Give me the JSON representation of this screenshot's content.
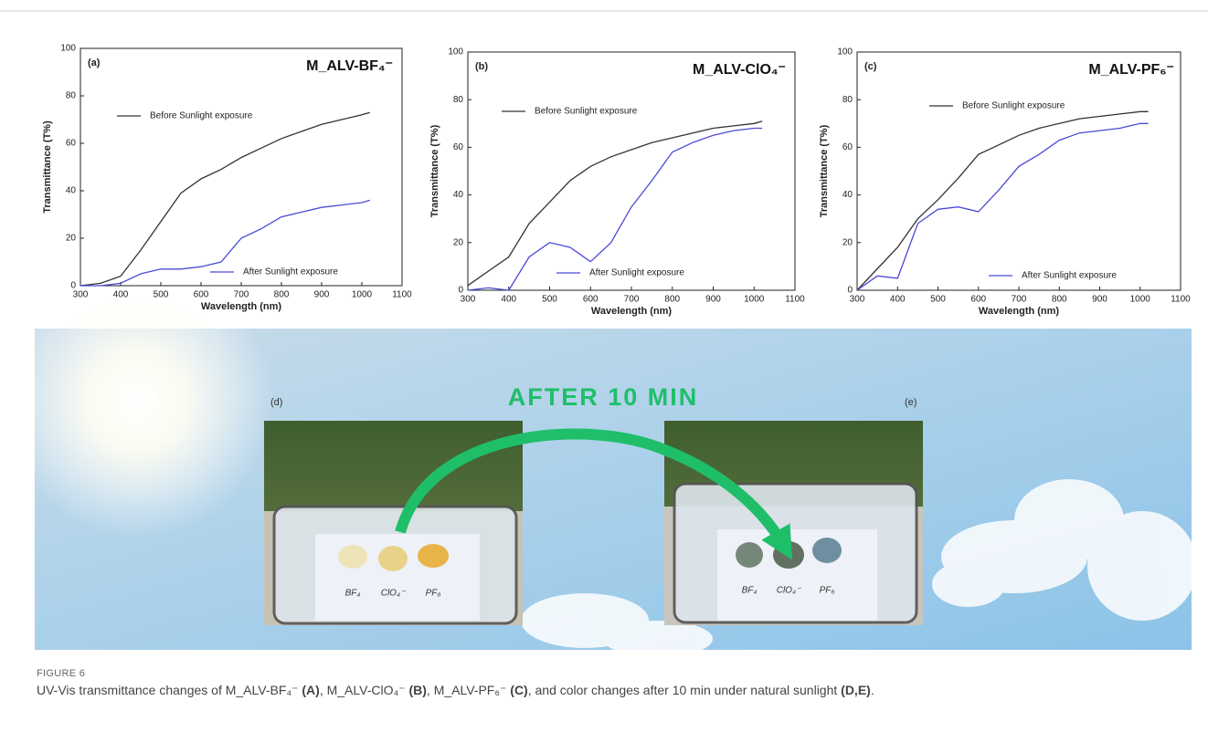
{
  "chart_data": [
    {
      "type": "line",
      "panel": "(a)",
      "title": "M_ALV-BF₄⁻",
      "x_label": "Wavelength (nm)",
      "y_label": "Transmittance (T%)",
      "x": [
        300,
        350,
        400,
        450,
        500,
        550,
        600,
        650,
        700,
        750,
        800,
        850,
        900,
        950,
        1000,
        1020
      ],
      "series": [
        {
          "name": "Before Sunlight exposure",
          "color": "#333333",
          "values": [
            0,
            1,
            4,
            15,
            27,
            39,
            45,
            49,
            54,
            58,
            62,
            65,
            68,
            70,
            72,
            73
          ]
        },
        {
          "name": "After Sunlight exposure",
          "color": "#4a4ad8",
          "values": [
            0,
            0,
            1,
            5,
            7,
            7,
            8,
            10,
            20,
            24,
            29,
            31,
            33,
            34,
            35,
            36
          ]
        }
      ],
      "xlim": [
        300,
        1100
      ],
      "xticks": [
        300,
        400,
        500,
        600,
        700,
        800,
        900,
        1000,
        1100
      ],
      "ylim": [
        0,
        100
      ],
      "yticks": [
        0,
        20,
        40,
        60,
        80,
        100
      ],
      "grid": false
    },
    {
      "type": "line",
      "panel": "(b)",
      "title": "M_ALV-ClO₄⁻",
      "x_label": "Wavelength (nm)",
      "y_label": "Transmittance (T%)",
      "x": [
        300,
        350,
        400,
        450,
        500,
        550,
        600,
        650,
        700,
        750,
        800,
        850,
        900,
        950,
        1000,
        1020
      ],
      "series": [
        {
          "name": "Before Sunlight exposure",
          "color": "#333333",
          "values": [
            2,
            8,
            14,
            28,
            37,
            46,
            52,
            56,
            59,
            62,
            64,
            66,
            68,
            69,
            70,
            71
          ]
        },
        {
          "name": "After Sunlight exposure",
          "color": "#4a4ad8",
          "values": [
            0,
            1,
            0,
            14,
            20,
            18,
            12,
            20,
            35,
            46,
            58,
            62,
            65,
            67,
            68,
            68
          ]
        }
      ],
      "xlim": [
        300,
        1100
      ],
      "xticks": [
        300,
        400,
        500,
        600,
        700,
        800,
        900,
        1000,
        1100
      ],
      "ylim": [
        0,
        100
      ],
      "yticks": [
        0,
        20,
        40,
        60,
        80,
        100
      ],
      "grid": false
    },
    {
      "type": "line",
      "panel": "(c)",
      "title": "M_ALV-PF₆⁻",
      "x_label": "Wavelength (nm)",
      "y_label": "Transmittance (T%)",
      "x": [
        300,
        350,
        400,
        450,
        500,
        550,
        600,
        650,
        700,
        750,
        800,
        850,
        900,
        950,
        1000,
        1020
      ],
      "series": [
        {
          "name": "Before Sunlight exposure",
          "color": "#333333",
          "values": [
            0,
            9,
            18,
            30,
            38,
            47,
            57,
            61,
            65,
            68,
            70,
            72,
            73,
            74,
            75,
            75
          ]
        },
        {
          "name": "After Sunlight exposure",
          "color": "#4a4ad8",
          "values": [
            0,
            6,
            5,
            28,
            34,
            35,
            33,
            42,
            52,
            57,
            63,
            66,
            67,
            68,
            70,
            70
          ]
        }
      ],
      "xlim": [
        300,
        1100
      ],
      "xticks": [
        300,
        400,
        500,
        600,
        700,
        800,
        900,
        1000,
        1100
      ],
      "ylim": [
        0,
        100
      ],
      "yticks": [
        0,
        20,
        40,
        60,
        80,
        100
      ],
      "grid": false
    }
  ],
  "photo": {
    "headline": "AFTER 10 MIN",
    "left_panel": "(d)",
    "right_panel": "(e)",
    "left_samples": [
      "BF₄",
      "ClO₄⁻",
      "PF₆"
    ],
    "right_samples": [
      "BF₄",
      "ClO₄⁻",
      "PF₆"
    ]
  },
  "caption": {
    "label": "FIGURE 6",
    "segments": [
      {
        "text": "UV-Vis transmittance changes of M_ALV-BF₄⁻ "
      },
      {
        "text": "(A)",
        "bold": true
      },
      {
        "text": ", M_ALV-ClO₄⁻ "
      },
      {
        "text": "(B)",
        "bold": true
      },
      {
        "text": ", M_ALV-PF₆⁻ "
      },
      {
        "text": "(C)",
        "bold": true
      },
      {
        "text": ", and color changes after 10 min under natural sunlight "
      },
      {
        "text": "(D,E)",
        "bold": true
      },
      {
        "text": "."
      }
    ]
  }
}
